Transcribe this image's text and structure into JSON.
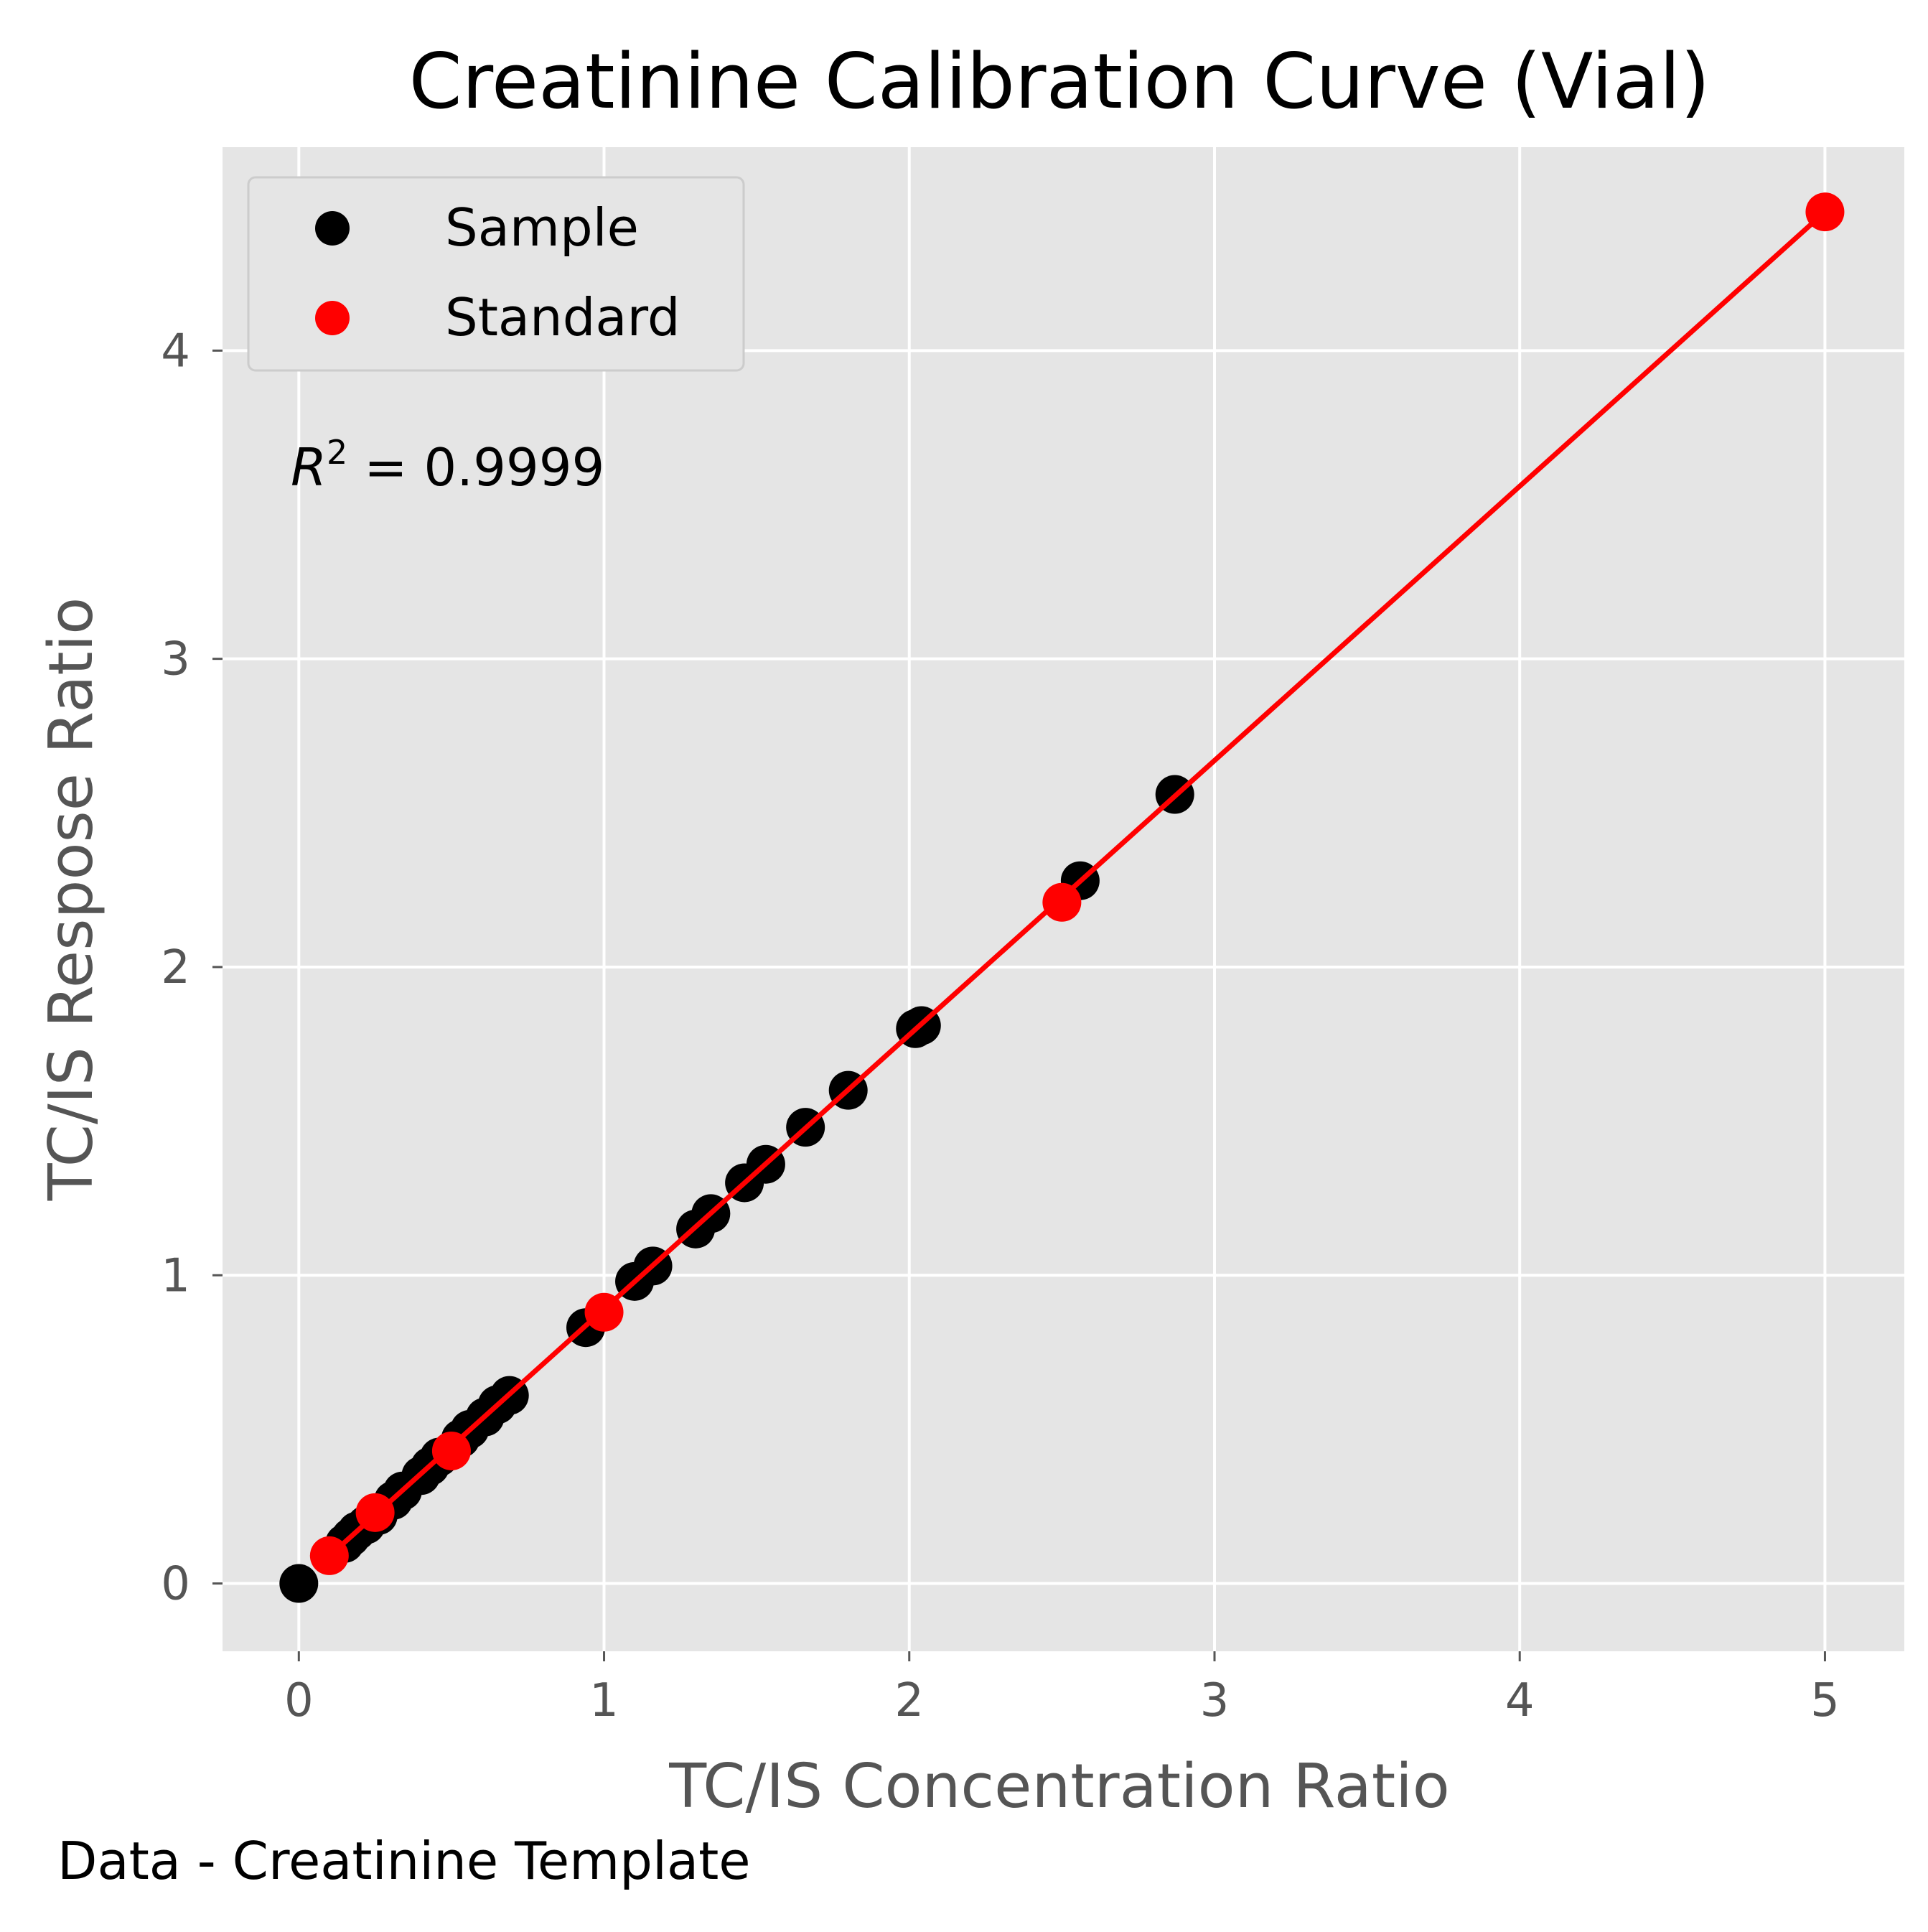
{
  "footer": "Data - Creatinine Template",
  "chart_data": {
    "type": "scatter",
    "title": "Creatinine Calibration Curve (Vial)",
    "xlabel": "TC/IS Concentration Ratio",
    "ylabel": "TC/IS Respose Ratio",
    "xlim": [
      -0.25,
      5.26
    ],
    "ylim": [
      -0.22,
      4.66
    ],
    "xticks": [
      0,
      1,
      2,
      3,
      4,
      5
    ],
    "yticks": [
      0,
      1,
      2,
      3,
      4
    ],
    "grid": true,
    "legend_position": "top-left",
    "background_color": "#e5e5e5",
    "annotation": {
      "prefix": "R",
      "superscript": "2",
      "text": " = 0.9999"
    },
    "series": [
      {
        "name": "Sample",
        "color": "#000000",
        "points": [
          [
            0.0,
            0.0
          ],
          [
            0.15,
            0.13
          ],
          [
            0.17,
            0.15
          ],
          [
            0.19,
            0.17
          ],
          [
            0.22,
            0.19
          ],
          [
            0.26,
            0.22
          ],
          [
            0.31,
            0.27
          ],
          [
            0.34,
            0.3
          ],
          [
            0.4,
            0.35
          ],
          [
            0.43,
            0.38
          ],
          [
            0.46,
            0.41
          ],
          [
            0.53,
            0.47
          ],
          [
            0.56,
            0.5
          ],
          [
            0.61,
            0.54
          ],
          [
            0.65,
            0.58
          ],
          [
            0.69,
            0.61
          ],
          [
            0.94,
            0.83
          ],
          [
            1.1,
            0.98
          ],
          [
            1.16,
            1.03
          ],
          [
            1.3,
            1.15
          ],
          [
            1.35,
            1.2
          ],
          [
            1.46,
            1.3
          ],
          [
            1.53,
            1.36
          ],
          [
            1.66,
            1.48
          ],
          [
            1.8,
            1.6
          ],
          [
            2.02,
            1.8
          ],
          [
            2.04,
            1.81
          ],
          [
            2.56,
            2.28
          ],
          [
            2.87,
            2.56
          ]
        ]
      },
      {
        "name": "Standard",
        "color": "#ff0000",
        "points": [
          [
            0.1,
            0.09
          ],
          [
            0.25,
            0.23
          ],
          [
            0.5,
            0.43
          ],
          [
            1.0,
            0.88
          ],
          [
            2.5,
            2.21
          ],
          [
            5.0,
            4.45
          ]
        ]
      }
    ],
    "fit_line": {
      "color": "#ff0000",
      "slope": 0.89,
      "intercept": 0.0,
      "x_range": [
        0.1,
        5.0
      ]
    }
  }
}
